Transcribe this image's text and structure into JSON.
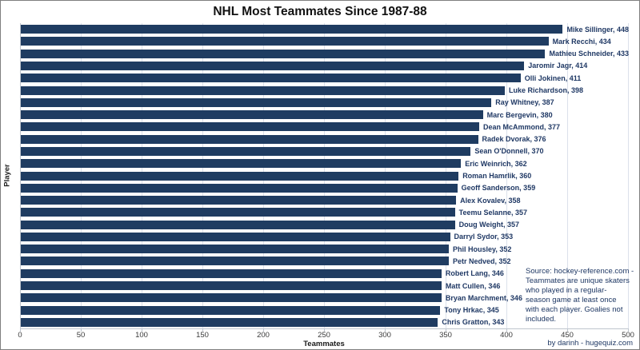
{
  "title": "NHL Most Teammates Since 1987-88",
  "x_axis": {
    "label": "Teammates",
    "min": 0,
    "max": 500,
    "ticks": [
      0,
      50,
      100,
      150,
      200,
      250,
      300,
      350,
      400,
      450,
      500
    ]
  },
  "y_axis": {
    "label": "Player"
  },
  "annotation": {
    "lines": [
      "Source: hockey-reference.com -",
      "Teammates are unique skaters",
      "who played in a regular-",
      "season game at least once",
      "with each player. Goalies not",
      "included."
    ]
  },
  "credit": "by darinh - hugequiz.com",
  "colors": {
    "bar": "#1f3c61",
    "data_label": "#1f3864",
    "gridline": "#dce1eb",
    "axis_line": "#bfc5ce",
    "annotation_text": "#1f3864",
    "credit_text": "#1f3864",
    "title_text": "#111111"
  },
  "chart_data": {
    "type": "bar",
    "orientation": "horizontal",
    "title": "NHL Most Teammates Since 1987-88",
    "xlabel": "Teammates",
    "ylabel": "Player",
    "xlim": [
      0,
      500
    ],
    "grid": true,
    "data_label_format": "{name}, {value}",
    "categories": [
      "Mike Sillinger",
      "Mark Recchi",
      "Mathieu Schneider",
      "Jaromir Jagr",
      "Olli Jokinen",
      "Luke Richardson",
      "Ray Whitney",
      "Marc Bergevin",
      "Dean McAmmond",
      "Radek Dvorak",
      "Sean O'Donnell",
      "Eric Weinrich",
      "Roman Hamrlik",
      "Geoff Sanderson",
      "Alex Kovalev",
      "Teemu Selanne",
      "Doug Weight",
      "Darryl Sydor",
      "Phil Housley",
      "Petr Nedved",
      "Robert Lang",
      "Matt Cullen",
      "Bryan Marchment",
      "Tony Hrkac",
      "Chris Gratton"
    ],
    "values": [
      448,
      434,
      433,
      414,
      411,
      398,
      387,
      380,
      377,
      376,
      370,
      362,
      360,
      359,
      358,
      357,
      357,
      353,
      352,
      352,
      346,
      346,
      346,
      345,
      343
    ]
  }
}
